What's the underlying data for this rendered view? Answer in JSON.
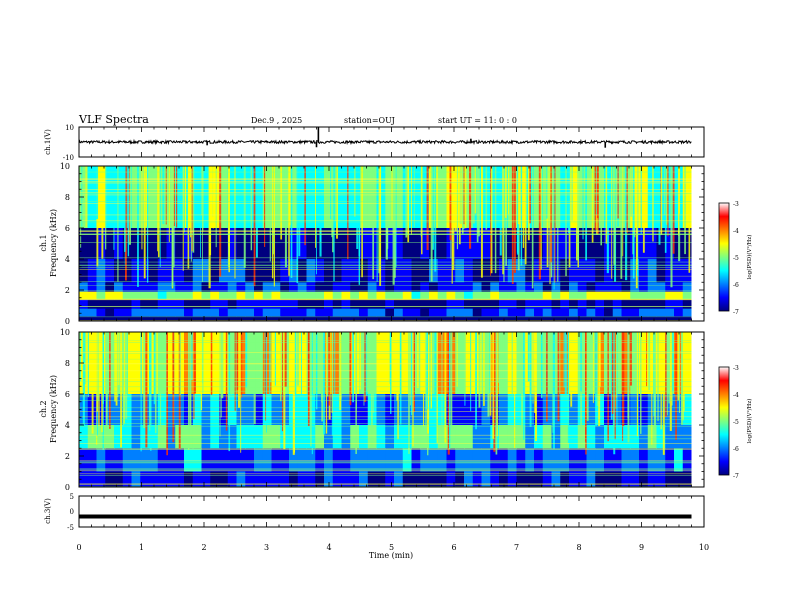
{
  "header": {
    "title": "VLF Spectra",
    "date": "Dec.9 , 2025",
    "station": "station=OUJ",
    "start_time": "start UT = 11: 0 : 0"
  },
  "chart_data": [
    {
      "type": "line",
      "name": "ch1-waveform",
      "ylabel": "ch.1(V)",
      "ylim": [
        -10,
        10
      ],
      "yticks": [
        "10",
        "-10"
      ],
      "baseline": 0,
      "spikes": [
        {
          "t": 3.83,
          "v": 9.8
        },
        {
          "t": 3.8,
          "v": -3.5
        },
        {
          "t": 6.27,
          "v": 2.2
        },
        {
          "t": 8.42,
          "v": -3.8
        },
        {
          "t": 2.05,
          "v": -2.2
        }
      ]
    },
    {
      "type": "heatmap",
      "name": "ch1-spectrogram",
      "ylabel": "ch.1\nFrequency (kHz)",
      "xlim": [
        0,
        9.8
      ],
      "ylim": [
        0,
        10
      ],
      "yticks": [
        "0",
        "2",
        "4",
        "6",
        "8",
        "10"
      ],
      "colorbar": {
        "label": "log(PSD)(V²/Hz)",
        "range": [
          -7,
          -3
        ],
        "ticks": [
          "-3",
          "-4",
          "-5",
          "-6",
          "-7"
        ]
      },
      "bands": [
        {
          "f0": 0.3,
          "f1": 0.8,
          "level": -6.3
        },
        {
          "f0": 0.8,
          "f1": 1.4,
          "level": -6.9
        },
        {
          "f0": 1.4,
          "f1": 1.9,
          "level": -4.8
        },
        {
          "f0": 1.9,
          "f1": 2.5,
          "level": -6.5
        },
        {
          "f0": 2.5,
          "f1": 4.0,
          "level": -6.6
        },
        {
          "f0": 4.0,
          "f1": 6.0,
          "level": -7.0
        },
        {
          "f0": 6.0,
          "f1": 10.0,
          "level": -5.0
        }
      ]
    },
    {
      "type": "heatmap",
      "name": "ch2-spectrogram",
      "ylabel": "ch.2\nFrequency (kHz)",
      "xlim": [
        0,
        9.8
      ],
      "ylim": [
        0,
        10
      ],
      "yticks": [
        "0",
        "2",
        "4",
        "6",
        "8",
        "10"
      ],
      "colorbar": {
        "label": "log(PSD)(V²/Hz)",
        "range": [
          -7,
          -3
        ],
        "ticks": [
          "-3",
          "-4",
          "-5",
          "-6",
          "-7"
        ]
      },
      "bands": [
        {
          "f0": 0.0,
          "f1": 1.0,
          "level": -6.6
        },
        {
          "f0": 1.0,
          "f1": 2.5,
          "level": -6.2
        },
        {
          "f0": 2.5,
          "f1": 4.0,
          "level": -5.5
        },
        {
          "f0": 4.0,
          "f1": 6.0,
          "level": -6.0
        },
        {
          "f0": 6.0,
          "f1": 10.0,
          "level": -4.6
        }
      ]
    },
    {
      "type": "line",
      "name": "ch3-waveform",
      "ylabel": "ch.3(V)",
      "ylim": [
        -5,
        5
      ],
      "yticks": [
        "5",
        "0",
        "-5"
      ],
      "baseline": -1.6
    }
  ],
  "xaxis": {
    "label": "Time (min)",
    "range": [
      0,
      10
    ],
    "ticks": [
      "0",
      "1",
      "2",
      "3",
      "4",
      "5",
      "6",
      "7",
      "8",
      "9",
      "10"
    ]
  },
  "colors": {
    "jet": [
      "#00007f",
      "#0000ff",
      "#007fff",
      "#00ffff",
      "#7fff7f",
      "#ffff00",
      "#ff7f00",
      "#ff0000",
      "#7f0000"
    ]
  }
}
